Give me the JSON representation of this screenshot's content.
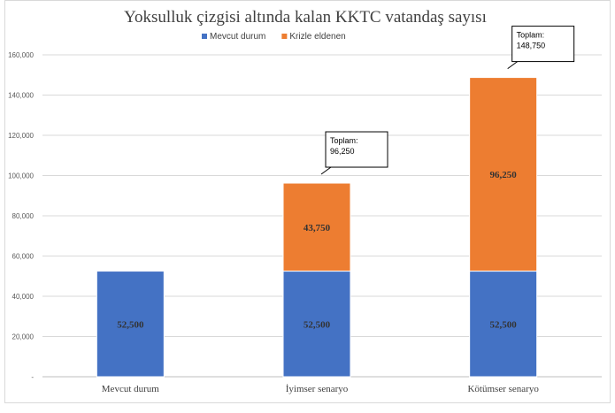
{
  "chart_data": {
    "type": "bar",
    "stacked": true,
    "title": "Yoksulluk çizgisi  altında kalan KKTC vatandaş sayısı",
    "categories": [
      "Mevcut durum",
      "İyimser senaryo",
      "Kötümser senaryo"
    ],
    "series": [
      {
        "name": "Mevcut durum",
        "color": "#4472c4",
        "values": [
          52500,
          52500,
          52500
        ],
        "labels": [
          "52,500",
          "52,500",
          "52,500"
        ]
      },
      {
        "name": "Krizle eldenen",
        "color": "#ed7d31",
        "values": [
          0,
          43750,
          96250
        ],
        "labels": [
          "",
          "43,750",
          "96,250"
        ]
      }
    ],
    "ylim": [
      0,
      160000
    ],
    "yticks": [
      "-",
      "20,000",
      "40,000",
      "60,000",
      "80,000",
      "100,000",
      "120,000",
      "140,000",
      "160,000"
    ],
    "grid": true,
    "legend": "top",
    "callouts": [
      {
        "category_index": 1,
        "label": "Toplam:",
        "value": "96,250"
      },
      {
        "category_index": 2,
        "label": "Toplam:",
        "value": "148,750"
      }
    ]
  }
}
